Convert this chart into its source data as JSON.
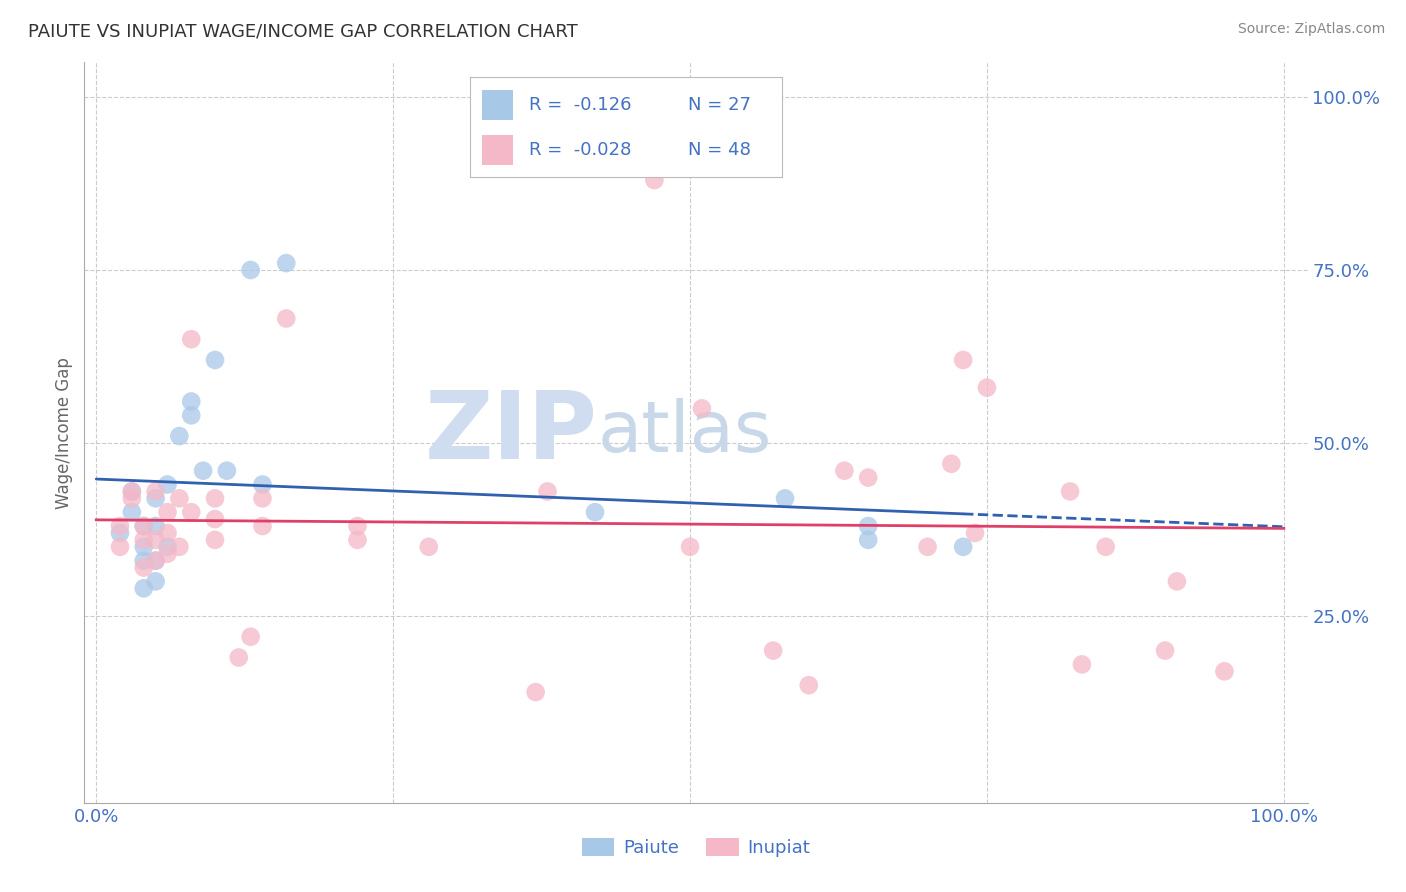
{
  "title": "PAIUTE VS INUPIAT WAGE/INCOME GAP CORRELATION CHART",
  "source": "Source: ZipAtlas.com",
  "ylabel": "Wage/Income Gap",
  "ytick_values": [
    0.25,
    0.5,
    0.75,
    1.0
  ],
  "xlim": [
    -0.01,
    1.02
  ],
  "ylim": [
    -0.02,
    1.05
  ],
  "paiute_color": "#A8C8E8",
  "inupiat_color": "#F4B8C8",
  "paiute_line_color": "#3060B0",
  "inupiat_line_color": "#E04068",
  "R_paiute": -0.126,
  "N_paiute": 27,
  "R_inupiat": -0.028,
  "N_inupiat": 48,
  "paiute_x": [
    0.02,
    0.03,
    0.03,
    0.04,
    0.04,
    0.04,
    0.04,
    0.05,
    0.05,
    0.05,
    0.05,
    0.06,
    0.06,
    0.07,
    0.08,
    0.08,
    0.09,
    0.1,
    0.11,
    0.13,
    0.14,
    0.16,
    0.42,
    0.58,
    0.65,
    0.65,
    0.73
  ],
  "paiute_y": [
    0.37,
    0.4,
    0.43,
    0.29,
    0.33,
    0.35,
    0.38,
    0.3,
    0.33,
    0.38,
    0.42,
    0.35,
    0.44,
    0.51,
    0.54,
    0.56,
    0.46,
    0.62,
    0.46,
    0.75,
    0.44,
    0.76,
    0.4,
    0.42,
    0.36,
    0.38,
    0.35
  ],
  "inupiat_x": [
    0.02,
    0.02,
    0.03,
    0.03,
    0.04,
    0.04,
    0.04,
    0.05,
    0.05,
    0.05,
    0.06,
    0.06,
    0.06,
    0.07,
    0.07,
    0.08,
    0.08,
    0.1,
    0.1,
    0.1,
    0.12,
    0.13,
    0.14,
    0.14,
    0.16,
    0.22,
    0.22,
    0.28,
    0.37,
    0.38,
    0.47,
    0.5,
    0.51,
    0.57,
    0.6,
    0.63,
    0.65,
    0.7,
    0.72,
    0.73,
    0.74,
    0.75,
    0.82,
    0.83,
    0.85,
    0.9,
    0.91,
    0.95
  ],
  "inupiat_y": [
    0.35,
    0.38,
    0.42,
    0.43,
    0.32,
    0.36,
    0.38,
    0.33,
    0.36,
    0.43,
    0.34,
    0.37,
    0.4,
    0.35,
    0.42,
    0.4,
    0.65,
    0.36,
    0.39,
    0.42,
    0.19,
    0.22,
    0.38,
    0.42,
    0.68,
    0.36,
    0.38,
    0.35,
    0.14,
    0.43,
    0.88,
    0.35,
    0.55,
    0.2,
    0.15,
    0.46,
    0.45,
    0.35,
    0.47,
    0.62,
    0.37,
    0.58,
    0.43,
    0.18,
    0.35,
    0.2,
    0.3,
    0.17
  ],
  "watermark_zip": "ZIP",
  "watermark_atlas": "atlas",
  "watermark_color_zip": "#D0DCF0",
  "watermark_color_atlas": "#C8D8E8",
  "background_color": "#FFFFFF",
  "grid_color": "#CCCCCC",
  "title_color": "#333333",
  "tick_label_color": "#4472C4",
  "legend_text_color": "#4472C4",
  "legend_R_color": "#4472C4",
  "legend_border_color": "#CCCCCC"
}
